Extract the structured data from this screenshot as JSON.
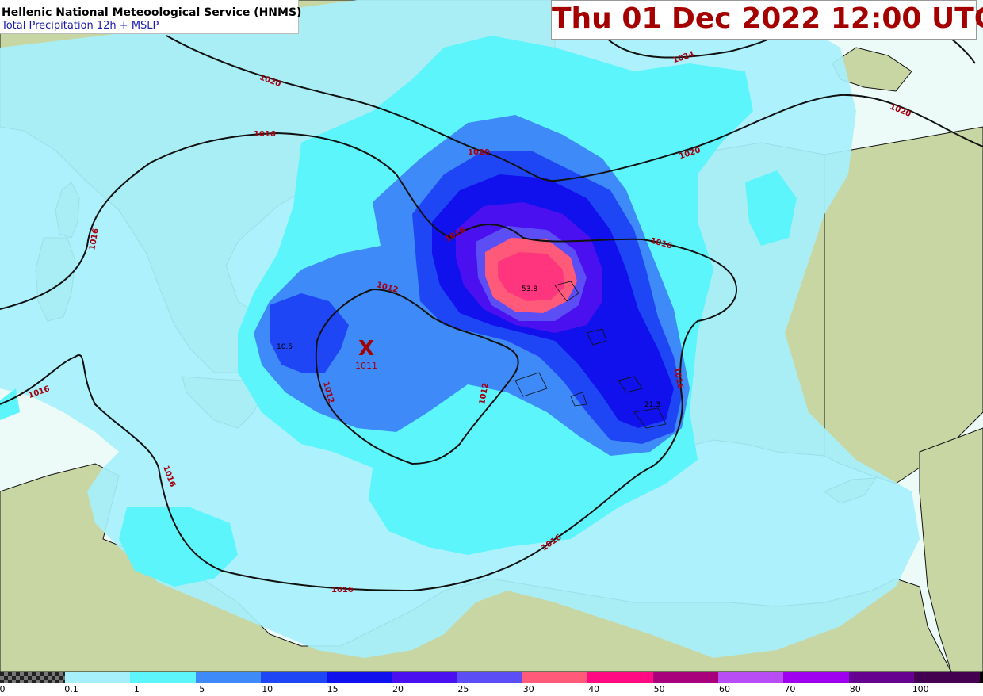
{
  "header": {
    "title": "Hellenic National Meteoological Service (HNMS)",
    "subtitle": "Total Precipitation 12h + MSLP",
    "valid_time": "Thu 01 Dec 2022 12:00 UTC"
  },
  "colors": {
    "land": "#c8d6a3",
    "sea_white": "#ecfbf8",
    "title_red": "#a50000",
    "isobar": "#111111",
    "isobar_label": "#a30010",
    "low_marker": "#a50000"
  },
  "isobar_labels": [
    "1024",
    "1020",
    "1020",
    "1020",
    "1020",
    "1016",
    "1016",
    "1016",
    "1016",
    "1016",
    "1016",
    "1016",
    "1016",
    "1016",
    "1012",
    "1012",
    "1012"
  ],
  "low_center": {
    "symbol": "X",
    "pressure": "1011"
  },
  "max_values": [
    "53.8",
    "21.3",
    "10.5"
  ],
  "legend": {
    "labels": [
      "0",
      "0.1",
      "1",
      "5",
      "10",
      "15",
      "20",
      "25",
      "30",
      "40",
      "50",
      "60",
      "70",
      "80",
      "100"
    ],
    "colors": [
      "#a6f0fb",
      "#5cf5fb",
      "#3d8af8",
      "#1f46f5",
      "#1111ee",
      "#4a10f0",
      "#5b4ef5",
      "#ff5a7a",
      "#ff0a82",
      "#a8007d",
      "#b84df5",
      "#a000f0",
      "#650090",
      "#430050"
    ]
  }
}
